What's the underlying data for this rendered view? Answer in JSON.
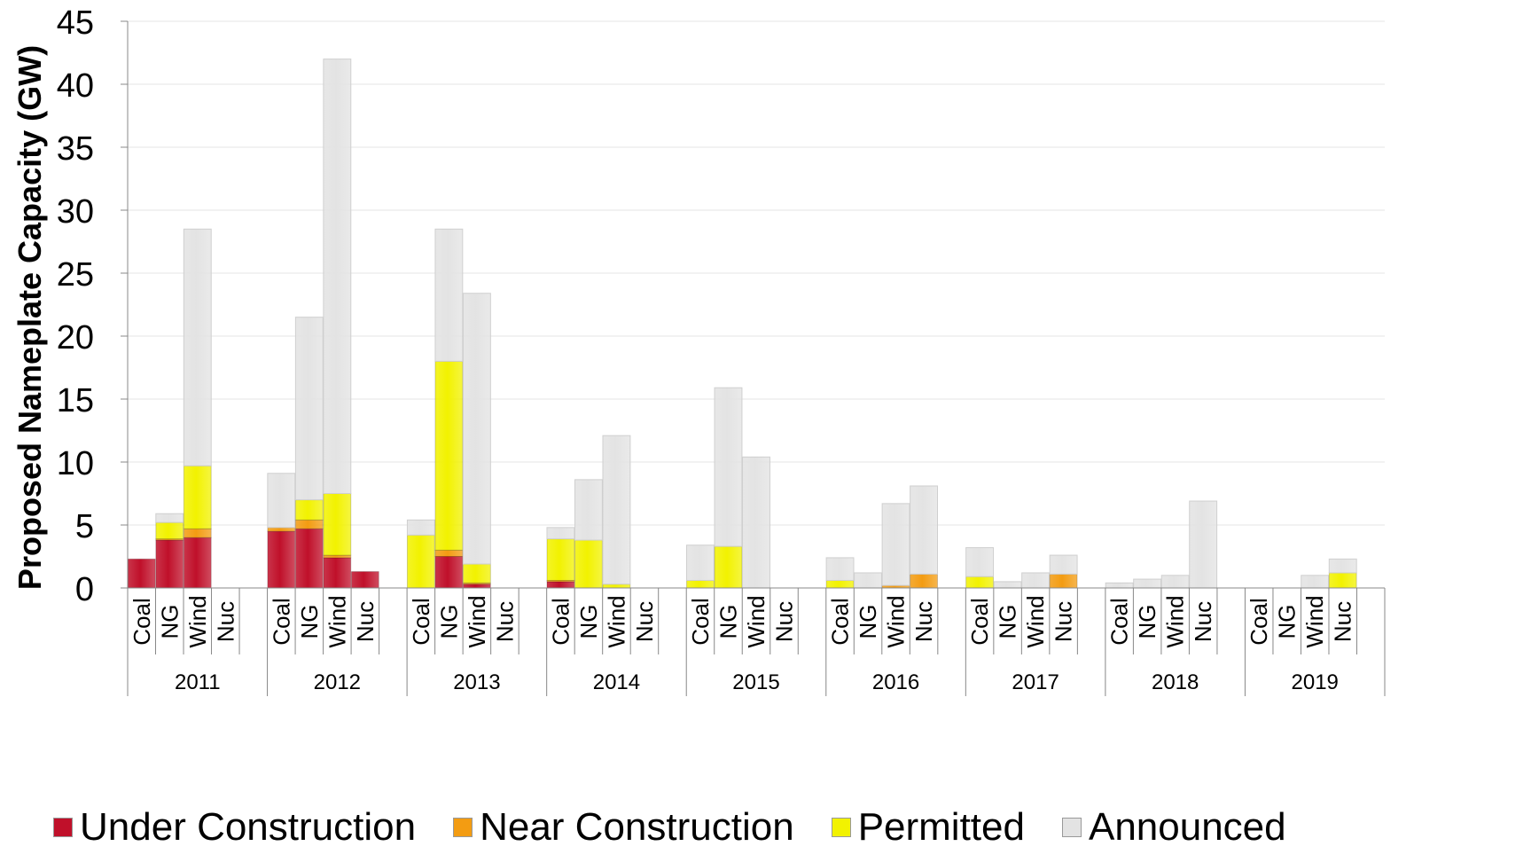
{
  "chart_data": {
    "type": "bar",
    "stacked": true,
    "ylabel": "Proposed Nameplate Capacity (GW)",
    "xlabel": "",
    "ylim": [
      0,
      45
    ],
    "yticks": [
      0,
      5,
      10,
      15,
      20,
      25,
      30,
      35,
      40,
      45
    ],
    "grid": true,
    "legend_position": "bottom",
    "years": [
      "2011",
      "2012",
      "2013",
      "2014",
      "2015",
      "2016",
      "2017",
      "2018",
      "2019"
    ],
    "fuels": [
      "Coal",
      "NG",
      "Wind",
      "Nuc"
    ],
    "series": [
      {
        "name": "Under Construction",
        "color": "#c0102a",
        "values": [
          [
            2.3,
            3.8,
            4.0,
            0
          ],
          [
            4.5,
            4.7,
            2.4,
            1.3
          ],
          [
            0,
            2.5,
            0.3,
            0
          ],
          [
            0.5,
            0,
            0,
            0
          ],
          [
            0,
            0,
            0,
            0
          ],
          [
            0,
            0,
            0,
            0
          ],
          [
            0,
            0,
            0,
            0
          ],
          [
            0,
            0,
            0,
            0
          ],
          [
            0,
            0,
            0,
            0
          ]
        ]
      },
      {
        "name": "Near Construction",
        "color": "#f39c12",
        "values": [
          [
            0,
            0.1,
            0.7,
            0
          ],
          [
            0.3,
            0.7,
            0.2,
            0
          ],
          [
            0,
            0.5,
            0.1,
            0
          ],
          [
            0.1,
            0,
            0,
            0
          ],
          [
            0,
            0,
            0,
            0
          ],
          [
            0,
            0,
            0.2,
            1.1
          ],
          [
            0,
            0,
            0,
            1.1
          ],
          [
            0,
            0,
            0,
            0
          ],
          [
            0,
            0,
            0,
            0
          ]
        ]
      },
      {
        "name": "Permitted",
        "color": "#f2f200",
        "values": [
          [
            0,
            1.3,
            5.0,
            0
          ],
          [
            0,
            1.6,
            4.9,
            0
          ],
          [
            4.2,
            15.0,
            1.5,
            0
          ],
          [
            3.3,
            3.8,
            0.3,
            0
          ],
          [
            0.6,
            3.3,
            0,
            0
          ],
          [
            0.6,
            0,
            0,
            0
          ],
          [
            0.9,
            0,
            0,
            0
          ],
          [
            0,
            0,
            0,
            0
          ],
          [
            0,
            0,
            0,
            1.2
          ]
        ]
      },
      {
        "name": "Announced",
        "color": "#e3e3e3",
        "values": [
          [
            0,
            0.7,
            18.8,
            0
          ],
          [
            4.3,
            14.5,
            34.5,
            0
          ],
          [
            1.2,
            10.5,
            21.5,
            0
          ],
          [
            0.9,
            4.8,
            11.8,
            0
          ],
          [
            2.8,
            12.6,
            10.4,
            0
          ],
          [
            1.8,
            1.2,
            6.5,
            7.0
          ],
          [
            2.3,
            0.5,
            1.2,
            1.5
          ],
          [
            0.4,
            0.7,
            1.0,
            6.9
          ],
          [
            0,
            0,
            1.0,
            1.1
          ]
        ]
      }
    ]
  }
}
